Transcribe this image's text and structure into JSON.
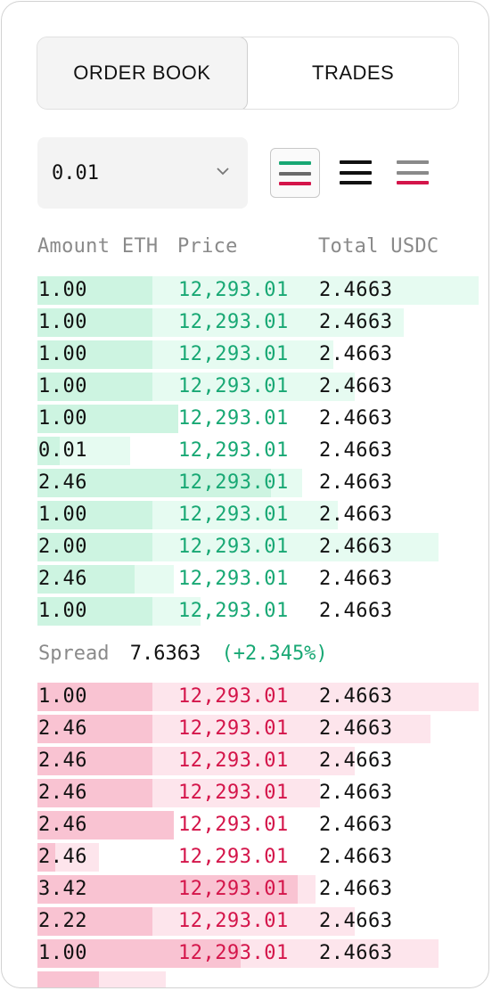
{
  "tabs": [
    {
      "label": "ORDER BOOK",
      "active": true
    },
    {
      "label": "TRADES",
      "active": false
    }
  ],
  "precision": {
    "value": "0.01"
  },
  "view_options": [
    {
      "name": "both",
      "selected": true
    },
    {
      "name": "bids",
      "selected": false
    },
    {
      "name": "asks",
      "selected": false
    }
  ],
  "columns": {
    "amount": "Amount ETH",
    "price": "Price",
    "total": "Total USDC"
  },
  "colors": {
    "bid_text": "#18a874",
    "bid_bar_dark": "#cdf4e1",
    "bid_bar_light": "#e6fbf1",
    "ask_text": "#d4154a",
    "ask_bar_dark": "#f9c3d2",
    "ask_bar_light": "#fde5ec"
  },
  "bids": [
    {
      "amount": "1.00",
      "price": "12,293.01",
      "total": "2.4663",
      "depth": 1.0,
      "fill": 0.26
    },
    {
      "amount": "1.00",
      "price": "12,293.01",
      "total": "2.4663",
      "depth": 0.83,
      "fill": 0.26
    },
    {
      "amount": "1.00",
      "price": "12,293.01",
      "total": "2.4663",
      "depth": 0.67,
      "fill": 0.26
    },
    {
      "amount": "1.00",
      "price": "12,293.01",
      "total": "2.4663",
      "depth": 0.72,
      "fill": 0.26
    },
    {
      "amount": "1.00",
      "price": "12,293.01",
      "total": "2.4663",
      "depth": 0.32,
      "fill": 0.32
    },
    {
      "amount": "0.01",
      "price": "12,293.01",
      "total": "2.4663",
      "depth": 0.21,
      "fill": 0.05
    },
    {
      "amount": "2.46",
      "price": "12,293.01",
      "total": "2.4663",
      "depth": 0.6,
      "fill": 0.53
    },
    {
      "amount": "1.00",
      "price": "12,293.01",
      "total": "2.4663",
      "depth": 0.68,
      "fill": 0.26
    },
    {
      "amount": "2.00",
      "price": "12,293.01",
      "total": "2.4663",
      "depth": 0.91,
      "fill": 0.26
    },
    {
      "amount": "2.46",
      "price": "12,293.01",
      "total": "2.4663",
      "depth": 0.31,
      "fill": 0.22
    },
    {
      "amount": "1.00",
      "price": "12,293.01",
      "total": "2.4663",
      "depth": 0.37,
      "fill": 0.26
    }
  ],
  "spread": {
    "label": "Spread",
    "value": "7.6363",
    "change": "(+2.345%)"
  },
  "asks": [
    {
      "amount": "1.00",
      "price": "12,293.01",
      "total": "2.4663",
      "depth": 1.0,
      "fill": 0.26
    },
    {
      "amount": "2.46",
      "price": "12,293.01",
      "total": "2.4663",
      "depth": 0.89,
      "fill": 0.26
    },
    {
      "amount": "2.46",
      "price": "12,293.01",
      "total": "2.4663",
      "depth": 0.72,
      "fill": 0.26
    },
    {
      "amount": "2.46",
      "price": "12,293.01",
      "total": "2.4663",
      "depth": 0.64,
      "fill": 0.26
    },
    {
      "amount": "2.46",
      "price": "12,293.01",
      "total": "2.4663",
      "depth": 0.31,
      "fill": 0.31
    },
    {
      "amount": "2.46",
      "price": "12,293.01",
      "total": "2.4663",
      "depth": 0.14,
      "fill": 0.04
    },
    {
      "amount": "3.42",
      "price": "12,293.01",
      "total": "2.4663",
      "depth": 0.63,
      "fill": 0.59
    },
    {
      "amount": "2.22",
      "price": "12,293.01",
      "total": "2.4663",
      "depth": 0.72,
      "fill": 0.26
    },
    {
      "amount": "1.00",
      "price": "12,293.01",
      "total": "2.4663",
      "depth": 0.91,
      "fill": 0.46
    },
    {
      "amount": "",
      "price": "",
      "total": "",
      "depth": 0.29,
      "fill": 0.14
    }
  ]
}
